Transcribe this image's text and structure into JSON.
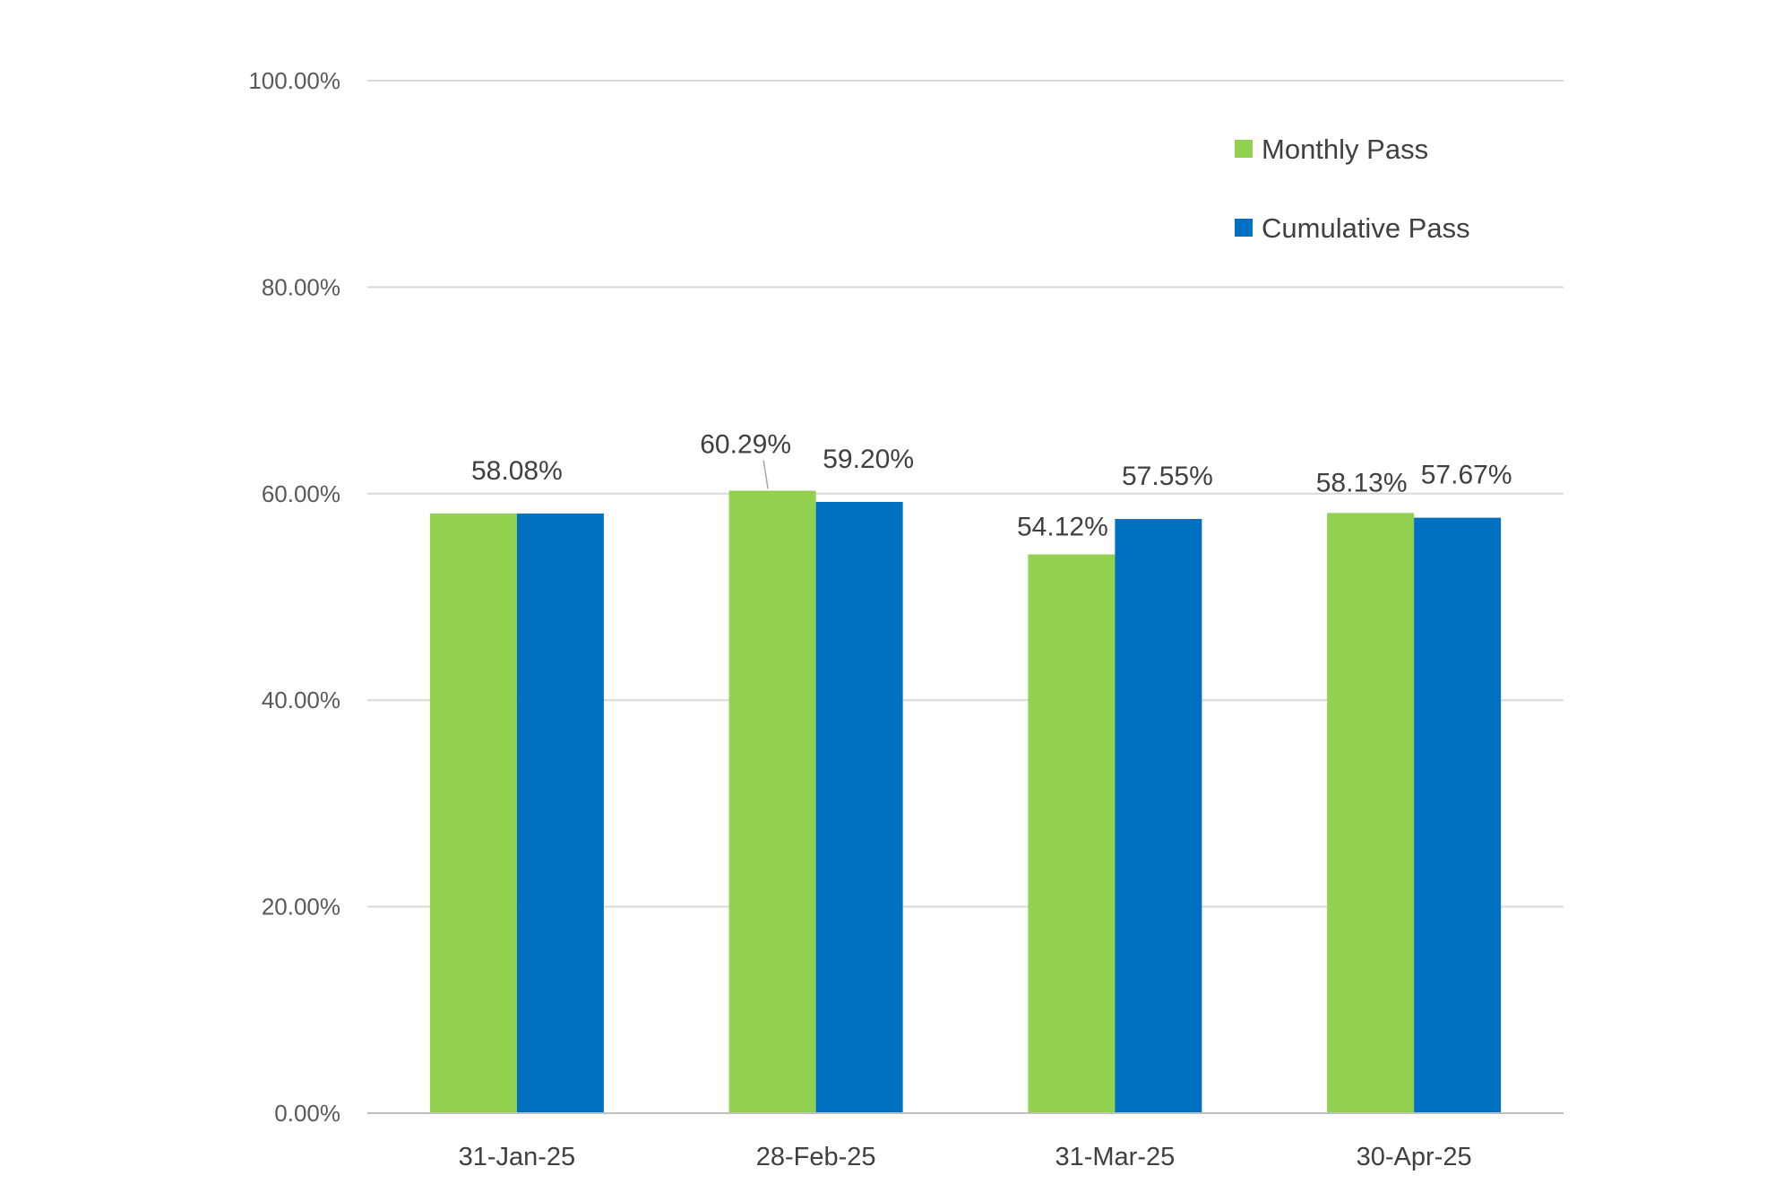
{
  "chart_data": {
    "type": "bar",
    "title": "",
    "xlabel": "",
    "ylabel": "",
    "categories": [
      "31-Jan-25",
      "28-Feb-25",
      "31-Mar-25",
      "30-Apr-25"
    ],
    "series": [
      {
        "name": "Monthly Pass",
        "color": "#92d050",
        "values": [
          58.08,
          60.29,
          54.12,
          58.13
        ],
        "labels": [
          "",
          "60.29%",
          "54.12%",
          "58.13%"
        ]
      },
      {
        "name": "Cumulative Pass",
        "color": "#0070c0",
        "values": [
          58.08,
          59.2,
          57.55,
          57.67
        ],
        "labels": [
          "58.08%",
          "59.20%",
          "57.55%",
          "57.67%"
        ]
      }
    ],
    "ylim": [
      0,
      100
    ],
    "yticks": [
      0,
      20,
      40,
      60,
      80,
      100
    ],
    "ytick_labels": [
      "0.00%",
      "20.00%",
      "40.00%",
      "60.00%",
      "80.00%",
      "100.00%"
    ],
    "grid": true,
    "legend_position": "top-right"
  }
}
